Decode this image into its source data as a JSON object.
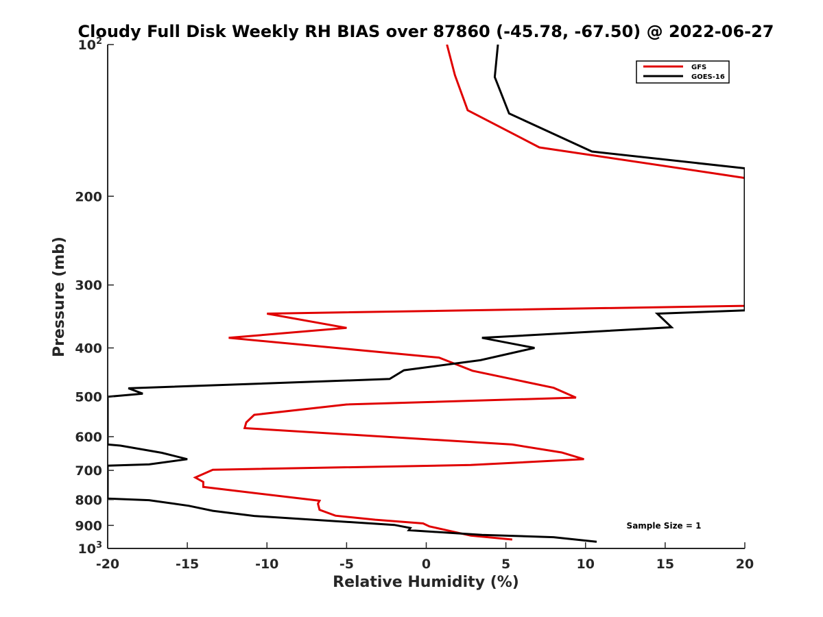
{
  "chart_data": {
    "type": "line",
    "title": "Cloudy Full Disk Weekly RH BIAS over 87860 (-45.78, -67.50) @ 2022-06-27",
    "xlabel": "Relative Humidity (%)",
    "ylabel": "Pressure (mb)",
    "xlim": [
      -20,
      20
    ],
    "ylim": [
      100,
      1000
    ],
    "y_scale": "log",
    "y_reversed": true,
    "x_ticks": [
      -20,
      -15,
      -10,
      -5,
      0,
      5,
      10,
      15,
      20
    ],
    "x_tick_labels": [
      "-20",
      "-15",
      "-10",
      "-5",
      "0",
      "5",
      "10",
      "15",
      "20"
    ],
    "y_ticks": [
      100,
      200,
      300,
      400,
      500,
      600,
      700,
      800,
      900,
      1000
    ],
    "y_tick_labels": [
      {
        "base": "10",
        "sup": "2"
      },
      {
        "base": "200",
        "sup": ""
      },
      {
        "base": "300",
        "sup": ""
      },
      {
        "base": "400",
        "sup": ""
      },
      {
        "base": "500",
        "sup": ""
      },
      {
        "base": "600",
        "sup": ""
      },
      {
        "base": "700",
        "sup": ""
      },
      {
        "base": "800",
        "sup": ""
      },
      {
        "base": "900",
        "sup": ""
      },
      {
        "base": "10",
        "sup": "3"
      }
    ],
    "legend_placement": "top-right",
    "annotation": "Sample Size = 1",
    "series": [
      {
        "name": "GFS",
        "color": "#e00000",
        "points": [
          [
            1.3,
            100
          ],
          [
            1.8,
            115
          ],
          [
            2.6,
            135
          ],
          [
            7.1,
            160
          ],
          [
            18.0,
            180
          ],
          [
            20.0,
            184
          ],
          [
            20.0,
            330
          ],
          [
            -10.0,
            342
          ],
          [
            -5.0,
            365
          ],
          [
            -12.4,
            382
          ],
          [
            0.8,
            418
          ],
          [
            2.9,
            444
          ],
          [
            8.0,
            480
          ],
          [
            9.4,
            502
          ],
          [
            -5.0,
            518
          ],
          [
            -10.8,
            543
          ],
          [
            -11.3,
            562
          ],
          [
            -11.4,
            577
          ],
          [
            5.4,
            622
          ],
          [
            8.5,
            645
          ],
          [
            9.9,
            665
          ],
          [
            2.8,
            683
          ],
          [
            -13.4,
            698
          ],
          [
            -14.5,
            723
          ],
          [
            -14.0,
            738
          ],
          [
            -14.0,
            755
          ],
          [
            -6.7,
            804
          ],
          [
            -6.8,
            815
          ],
          [
            -6.7,
            838
          ],
          [
            -5.7,
            861
          ],
          [
            -3.2,
            877
          ],
          [
            -0.2,
            892
          ],
          [
            0.2,
            904
          ],
          [
            2.8,
            943
          ],
          [
            5.4,
            960
          ]
        ]
      },
      {
        "name": "GOES-16",
        "color": "#000000",
        "points": [
          [
            4.5,
            100
          ],
          [
            4.3,
            116
          ],
          [
            5.2,
            137
          ],
          [
            10.4,
            163
          ],
          [
            20.0,
            176
          ],
          [
            20.0,
            337
          ],
          [
            14.5,
            342
          ],
          [
            15.4,
            364
          ],
          [
            3.5,
            382
          ],
          [
            6.8,
            400
          ],
          [
            3.4,
            423
          ],
          [
            -1.4,
            443
          ],
          [
            -2.3,
            461
          ],
          [
            -18.7,
            481
          ],
          [
            -17.8,
            493
          ],
          [
            -20.0,
            500
          ],
          [
            -20.0,
            622
          ],
          [
            -19.2,
            625
          ],
          [
            -16.6,
            646
          ],
          [
            -15.0,
            665
          ],
          [
            -17.4,
            681
          ],
          [
            -20.0,
            685
          ],
          [
            -20.0,
            796
          ],
          [
            -17.4,
            802
          ],
          [
            -14.9,
            823
          ],
          [
            -13.4,
            842
          ],
          [
            -10.8,
            862
          ],
          [
            -2.0,
            898
          ],
          [
            -1.0,
            911
          ],
          [
            -1.1,
            920
          ],
          [
            3.5,
            940
          ],
          [
            8.0,
            950
          ],
          [
            10.7,
            970
          ]
        ]
      }
    ]
  }
}
